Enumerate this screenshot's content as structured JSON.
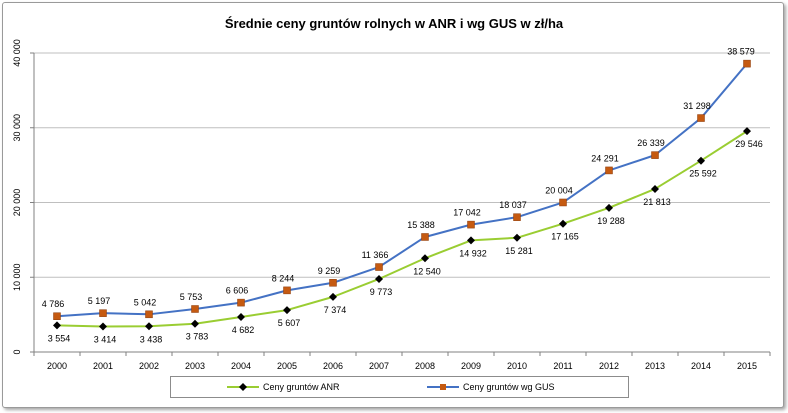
{
  "chart_data": {
    "type": "line",
    "title": "Średnie ceny gruntów rolnych w ANR i wg GUS w zł/ha",
    "xlabel": "",
    "ylabel": "",
    "categories": [
      "2000",
      "2001",
      "2002",
      "2003",
      "2004",
      "2005",
      "2006",
      "2007",
      "2008",
      "2009",
      "2010",
      "2011",
      "2012",
      "2013",
      "2014",
      "2015"
    ],
    "ylim": [
      0,
      40000
    ],
    "yticks": [
      0,
      10000,
      20000,
      30000,
      40000
    ],
    "ytick_labels": [
      "0",
      "10 000",
      "20 000",
      "30 000",
      "40 000"
    ],
    "grid": true,
    "legend_position": "bottom",
    "series": [
      {
        "name": "Ceny gruntów ANR",
        "values": [
          3554,
          3414,
          3438,
          3783,
          4682,
          5607,
          7374,
          9773,
          12540,
          14932,
          15281,
          17165,
          19288,
          21813,
          25592,
          29546
        ],
        "labels": [
          "3 554",
          "3 414",
          "3 438",
          "3 783",
          "4 682",
          "5 607",
          "7 374",
          "9 773",
          "12 540",
          "14 932",
          "15 281",
          "17 165",
          "19 288",
          "21 813",
          "25 592",
          "29 546"
        ],
        "line_color": "#9ACD32",
        "marker_color": "#000000",
        "marker": "diamond"
      },
      {
        "name": "Ceny gruntów wg GUS",
        "values": [
          4786,
          5197,
          5042,
          5753,
          6606,
          8244,
          9259,
          11366,
          15388,
          17042,
          18037,
          20004,
          24291,
          26339,
          31298,
          38579
        ],
        "labels": [
          "4 786",
          "5 197",
          "5 042",
          "5 753",
          "6 606",
          "8 244",
          "9 259",
          "11 366",
          "15 388",
          "17 042",
          "18 037",
          "20 004",
          "24 291",
          "26 339",
          "31 298",
          "38 579"
        ],
        "line_color": "#4472C4",
        "marker_color": "#C55A11",
        "marker": "square"
      }
    ]
  }
}
